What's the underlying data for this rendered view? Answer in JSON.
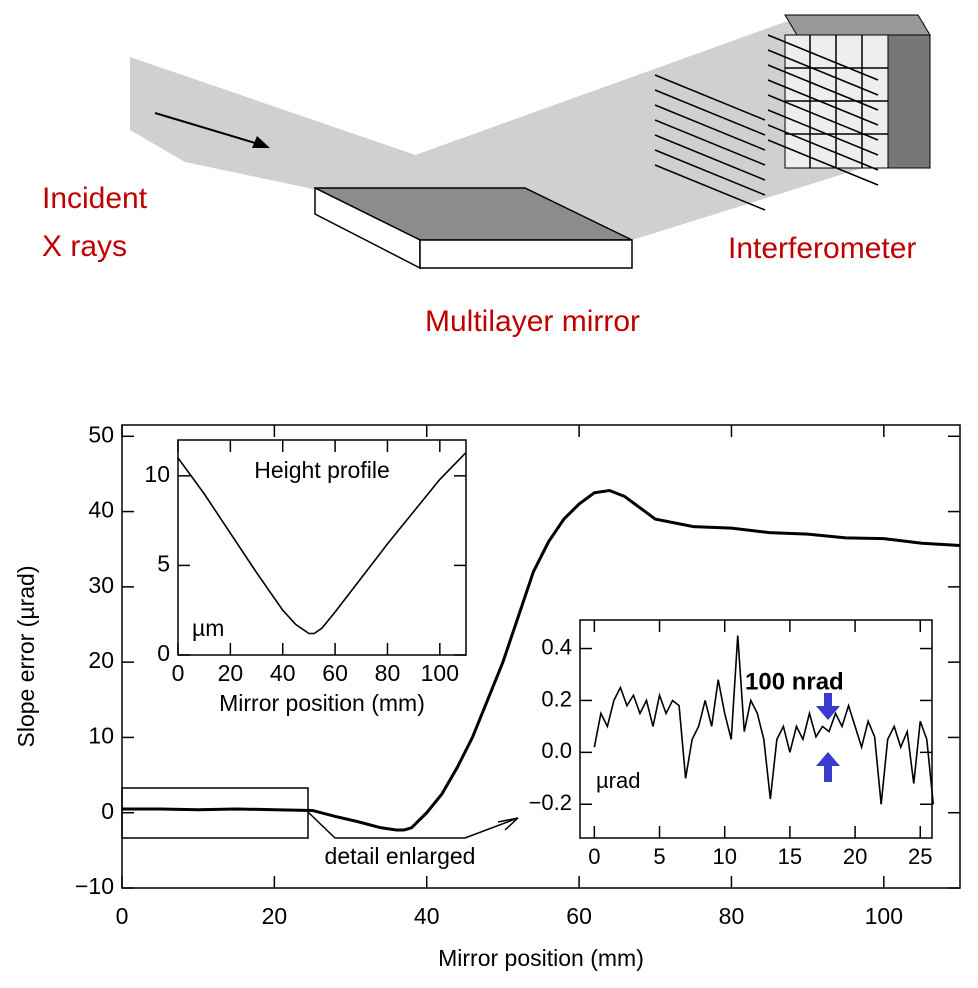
{
  "diagram": {
    "labels": [
      "Incident",
      "X rays",
      "Interferometer",
      "Multilayer mirror"
    ]
  },
  "chart_data": [
    {
      "type": "line",
      "xlabel": "Mirror position (mm)",
      "ylabel": "Slope error (µrad)",
      "annotations": [
        "detail enlarged"
      ],
      "xlim": [
        0,
        110
      ],
      "ylim": [
        -10,
        51.5
      ],
      "xticks": [
        0,
        20,
        40,
        60,
        80,
        100
      ],
      "yticks": [
        {
          "value": -10,
          "label": "−10"
        },
        0,
        10,
        20,
        30,
        40,
        50
      ],
      "color": "#000000",
      "x": [
        0,
        5,
        10,
        15,
        20,
        25,
        28,
        31,
        34,
        36,
        37,
        38,
        40,
        42,
        44,
        46,
        48,
        50,
        52,
        54,
        56,
        58,
        60,
        62,
        64,
        66,
        68,
        70,
        75,
        80,
        85,
        90,
        95,
        100,
        105,
        110
      ],
      "values": [
        0.5,
        0.5,
        0.4,
        0.5,
        0.4,
        0.3,
        -0.5,
        -1.2,
        -2,
        -2.3,
        -2.3,
        -2.0,
        0,
        2.5,
        6,
        10,
        15,
        20,
        26,
        32,
        36,
        39,
        41,
        42.5,
        42.8,
        42,
        40.5,
        39,
        38,
        37.8,
        37.2,
        37,
        36.5,
        36.4,
        35.8,
        35.5
      ]
    },
    {
      "type": "line",
      "xlabel": "Mirror position (mm)",
      "annotations": [
        "Height profile",
        "µm"
      ],
      "xlim": [
        0,
        110
      ],
      "ylim": [
        0,
        12
      ],
      "xticks": [
        0,
        20,
        40,
        60,
        80,
        100
      ],
      "yticks": [
        0,
        5,
        10
      ],
      "color": "#000000",
      "x": [
        0,
        10,
        20,
        30,
        40,
        45,
        50,
        52,
        55,
        60,
        70,
        80,
        90,
        100,
        110
      ],
      "values": [
        11,
        9,
        6.8,
        4.6,
        2.5,
        1.7,
        1.2,
        1.2,
        1.5,
        2.4,
        4.3,
        6.2,
        8,
        9.8,
        11.3
      ]
    },
    {
      "type": "line",
      "annotations": [
        "µrad",
        "100 nrad"
      ],
      "annotation_color": "#3a3acc",
      "xlim": [
        -1.1,
        25.9
      ],
      "ylim": [
        -0.33,
        0.51
      ],
      "xticks": [
        0,
        5,
        10,
        15,
        20,
        25
      ],
      "yticks": [
        {
          "value": -0.2,
          "label": "−0.2"
        },
        {
          "value": 0,
          "label": "0.0"
        },
        0.2,
        0.4
      ],
      "color": "#000000",
      "x": [
        0,
        0.5,
        1,
        1.5,
        2,
        2.5,
        3,
        3.5,
        4,
        4.5,
        5,
        5.5,
        6,
        6.5,
        7,
        7.5,
        8,
        8.5,
        9,
        9.5,
        10,
        10.5,
        11,
        11.5,
        12,
        12.5,
        13,
        13.5,
        14,
        14.5,
        15,
        15.5,
        16,
        16.5,
        17,
        17.5,
        18,
        18.5,
        19,
        19.5,
        20,
        20.5,
        21,
        21.5,
        22,
        22.5,
        23,
        23.5,
        24,
        24.5,
        25,
        25.5,
        26
      ],
      "values": [
        0.02,
        0.15,
        0.1,
        0.2,
        0.25,
        0.18,
        0.22,
        0.15,
        0.2,
        0.1,
        0.22,
        0.15,
        0.2,
        0.18,
        -0.1,
        0.05,
        0.1,
        0.2,
        0.1,
        0.28,
        0.15,
        0.05,
        0.45,
        0.08,
        0.2,
        0.15,
        0.05,
        -0.18,
        0.05,
        0.1,
        0.0,
        0.1,
        0.05,
        0.15,
        0.06,
        0.1,
        0.08,
        0.15,
        0.1,
        0.18,
        0.1,
        0.02,
        0.12,
        0.06,
        -0.2,
        0.05,
        0.1,
        0.02,
        0.08,
        -0.12,
        0.12,
        0.05,
        -0.2
      ]
    }
  ]
}
